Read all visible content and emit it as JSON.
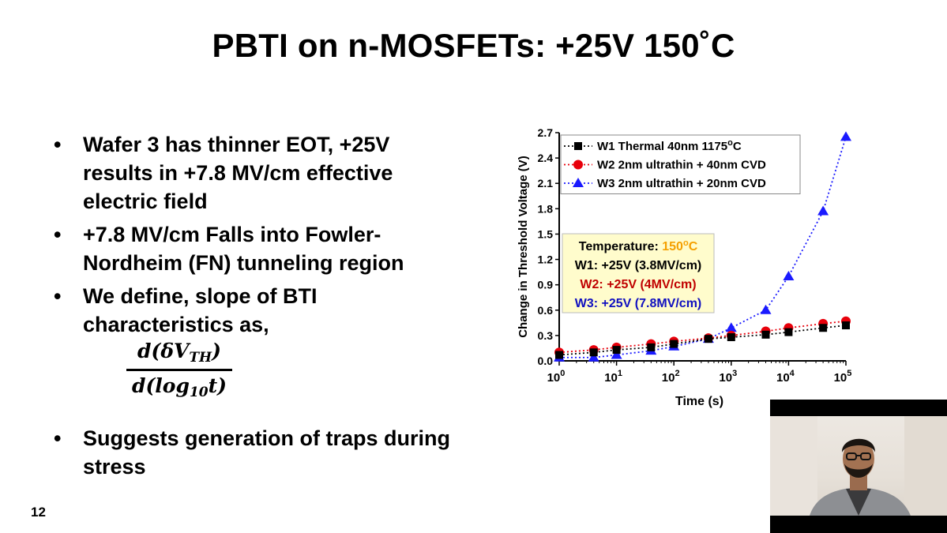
{
  "slide": {
    "title": "PBTI on n-MOSFETs: +25V 150˚C",
    "slide_number": "12"
  },
  "bullets": [
    "Wafer 3 has thinner EOT, +25V results in +7.8 MV/cm effective electric field",
    "+7.8 MV/cm Falls into Fowler-Nordheim (FN) tunneling region",
    "We define, slope of BTI characteristics as,",
    "Suggests generation of traps during stress"
  ],
  "bullet_symbol": "•",
  "formula": {
    "numerator_prefix": "d(δV",
    "numerator_sub": "TH",
    "numerator_suffix": ")",
    "denominator_prefix": "d(log",
    "denominator_sub": "10",
    "denominator_suffix": "t)"
  },
  "chart_data": {
    "type": "line",
    "xlabel": "Time (s)",
    "ylabel": "Change in Threshold Voltage (V)",
    "x_scale": "log",
    "xlim": [
      1,
      100000
    ],
    "ylim": [
      0,
      2.7
    ],
    "x_ticks": [
      1,
      10,
      100,
      1000,
      10000,
      100000
    ],
    "x_tick_labels": [
      [
        "10",
        "0"
      ],
      [
        "10",
        "1"
      ],
      [
        "10",
        "2"
      ],
      [
        "10",
        "3"
      ],
      [
        "10",
        "4"
      ],
      [
        "10",
        "5"
      ]
    ],
    "y_ticks": [
      0.0,
      0.3,
      0.6,
      0.9,
      1.2,
      1.5,
      1.8,
      2.1,
      2.4,
      2.7
    ],
    "y_tick_labels": [
      "0.0",
      "0.3",
      "0.6",
      "0.9",
      "1.2",
      "1.5",
      "1.8",
      "2.1",
      "2.4",
      "2.7"
    ],
    "legend_position": "top",
    "series": [
      {
        "legend_label": "W1 Thermal 40nm 1175",
        "legend_sup": "o",
        "legend_suffix": "C",
        "marker": "square",
        "color": "#000000",
        "x": [
          1,
          4,
          10,
          40,
          100,
          400,
          1000,
          4000,
          10000,
          40000,
          100000
        ],
        "y": [
          0.07,
          0.1,
          0.13,
          0.16,
          0.2,
          0.26,
          0.28,
          0.31,
          0.34,
          0.39,
          0.42
        ]
      },
      {
        "legend_label": "W2 2nm ultrathin + 40nm CVD",
        "legend_sup": "",
        "legend_suffix": "",
        "marker": "circle",
        "color": "#e8000b",
        "x": [
          1,
          4,
          10,
          40,
          100,
          400,
          1000,
          4000,
          10000,
          40000,
          100000
        ],
        "y": [
          0.1,
          0.13,
          0.16,
          0.2,
          0.23,
          0.27,
          0.3,
          0.35,
          0.39,
          0.44,
          0.47
        ]
      },
      {
        "legend_label": "W3 2nm ultrathin + 20nm CVD",
        "legend_sup": "",
        "legend_suffix": "",
        "marker": "triangle",
        "color": "#1a1aff",
        "x": [
          1,
          4,
          10,
          40,
          100,
          400,
          1000,
          4000,
          10000,
          40000,
          100000
        ],
        "y": [
          0.04,
          0.04,
          0.07,
          0.12,
          0.17,
          0.26,
          0.39,
          0.6,
          1.0,
          1.77,
          2.65
        ]
      }
    ],
    "annotation": {
      "background": "#fffccc",
      "lines": [
        {
          "text": "Temperature: ",
          "highlight": "150",
          "sup": "o",
          "suffix": "C",
          "color": "#000000",
          "highlight_color": "#f5a000"
        },
        {
          "text": "W1: +25V (3.8MV/cm)",
          "color": "#000000"
        },
        {
          "text": "W2: +25V (4MV/cm)",
          "color": "#c00000"
        },
        {
          "text": "W3: +25V (7.8MV/cm)",
          "color": "#1010c0"
        }
      ]
    }
  },
  "webcam": {
    "background": "#000000"
  }
}
